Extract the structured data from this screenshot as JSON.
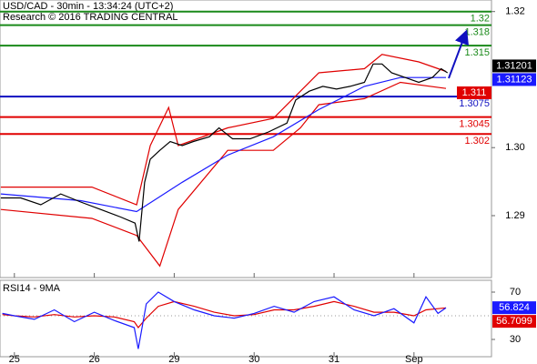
{
  "chart_data": [
    {
      "type": "line",
      "title": "USD/CAD - 30min - 13:34:24 (UTC+2)",
      "subtitle": "Research © 2016 TRADING CENTRAL",
      "xlim": [
        -0.18,
        5.97
      ],
      "ylim": [
        1.2809,
        1.3217
      ],
      "yticks": [
        1.29,
        {
          "value": 1.3,
          "label": "1.30"
        },
        1.32
      ],
      "series": [
        {
          "color": "#e00000",
          "x": [
            -0.17,
            0.97,
            1.53,
            1.7,
            1.93,
            2.05,
            2.67,
            3.24,
            3.58,
            3.81,
            4.38,
            4.6,
            5.06,
            5.4
          ],
          "values": [
            1.2942,
            1.2942,
            1.2916,
            1.3003,
            1.3059,
            1.3003,
            1.3029,
            1.3043,
            1.3083,
            1.311,
            1.3116,
            1.3137,
            1.3126,
            1.3112
          ]
        },
        {
          "color": "#e00000",
          "x": [
            -0.17,
            0.97,
            1.53,
            1.82,
            2.05,
            2.67,
            3.24,
            3.58,
            3.81,
            4.38,
            4.83,
            5.4
          ],
          "values": [
            1.2909,
            1.2896,
            1.2871,
            1.2826,
            1.2909,
            1.2996,
            1.2996,
            1.3029,
            1.3063,
            1.3072,
            1.3096,
            1.3087
          ]
        },
        {
          "color": "#1a1aff",
          "x": [
            -0.17,
            0.83,
            1.53,
            2.1,
            2.67,
            3.24,
            3.81,
            4.38,
            4.83,
            5.4
          ],
          "values": [
            1.2932,
            1.2922,
            1.2906,
            1.2949,
            1.2989,
            1.3016,
            1.3056,
            1.309,
            1.3103,
            1.3103
          ]
        },
        {
          "color": "#000000",
          "x": [
            -0.17,
            0.08,
            0.33,
            0.58,
            0.83,
            1.08,
            1.33,
            1.51,
            1.56,
            1.63,
            1.7,
            1.82,
            1.95,
            2.1,
            2.24,
            2.44,
            2.56,
            2.73,
            2.95,
            3.18,
            3.41,
            3.52,
            3.69,
            3.86,
            4.03,
            4.2,
            4.38,
            4.49,
            4.6,
            4.72,
            4.89,
            5.06,
            5.23,
            5.34,
            5.42
          ],
          "values": [
            1.2926,
            1.2926,
            1.2916,
            1.2932,
            1.292,
            1.2909,
            1.2898,
            1.2889,
            1.2862,
            1.2949,
            1.2983,
            1.2996,
            1.3009,
            1.3003,
            1.3009,
            1.3016,
            1.3029,
            1.3013,
            1.3013,
            1.3023,
            1.3036,
            1.307,
            1.3083,
            1.309,
            1.3086,
            1.309,
            1.3096,
            1.3123,
            1.3123,
            1.311,
            1.3103,
            1.3096,
            1.3103,
            1.3116,
            1.311
          ]
        }
      ],
      "levels": [
        {
          "value": 1.32,
          "color": "#1a8a1a"
        },
        {
          "value": 1.318,
          "color": "#1a8a1a"
        },
        {
          "value": 1.315,
          "color": "#1a8a1a"
        },
        {
          "value": 1.3075,
          "color": "#1010c0"
        },
        {
          "value": 1.3045,
          "color": "#e00000"
        },
        {
          "value": 1.302,
          "color": "#e00000"
        }
      ],
      "markers": [
        {
          "value": 1.31201,
          "color": "#000000"
        },
        {
          "value": 1.31123,
          "color": "#1a1aff"
        }
      ],
      "tags": [
        {
          "value": 1.311,
          "color": "#e00000"
        }
      ]
    },
    {
      "type": "line",
      "title": "RSI14 - 9MA",
      "xlim": [
        -0.18,
        5.97
      ],
      "ylim": [
        15.4,
        80
      ],
      "yticks": [
        30,
        70
      ],
      "xticks": [
        {
          "value": 0,
          "label": "25"
        },
        {
          "value": 1,
          "label": "26"
        },
        {
          "value": 2,
          "label": "29"
        },
        {
          "value": 3,
          "label": "30"
        },
        {
          "value": 4,
          "label": "31"
        },
        {
          "value": 5,
          "label": "Sep"
        }
      ],
      "series": [
        {
          "color": "#e00000",
          "x": [
            -0.15,
            0,
            0.25,
            0.5,
            0.75,
            1,
            1.25,
            1.5,
            1.55,
            1.65,
            1.8,
            2,
            2.25,
            2.5,
            2.75,
            3,
            3.25,
            3.5,
            3.75,
            4,
            4.25,
            4.5,
            4.75,
            5,
            5.15,
            5.3,
            5.4
          ],
          "values": [
            51,
            50,
            49,
            51,
            49,
            50,
            49,
            45,
            40,
            48,
            58,
            62,
            58,
            53,
            50,
            51,
            55,
            55,
            58,
            62,
            58,
            53,
            53,
            50,
            55,
            56,
            56.7
          ]
        },
        {
          "color": "#1a1aff",
          "x": [
            -0.15,
            0,
            0.25,
            0.5,
            0.75,
            1,
            1.25,
            1.5,
            1.55,
            1.65,
            1.8,
            2,
            2.25,
            2.5,
            2.75,
            3,
            3.25,
            3.5,
            3.75,
            4,
            4.25,
            4.5,
            4.75,
            5,
            5.15,
            5.3,
            5.4
          ],
          "values": [
            52,
            50,
            47,
            55,
            45,
            53,
            46,
            40,
            22,
            60,
            70,
            62,
            55,
            50,
            48,
            52,
            58,
            53,
            62,
            66,
            55,
            50,
            56,
            44,
            66,
            52,
            56.8
          ]
        }
      ],
      "markers": [
        {
          "value": 56.824,
          "color": "#1a1aff"
        },
        {
          "value": 56.7099,
          "color": "#e00000"
        }
      ]
    }
  ]
}
